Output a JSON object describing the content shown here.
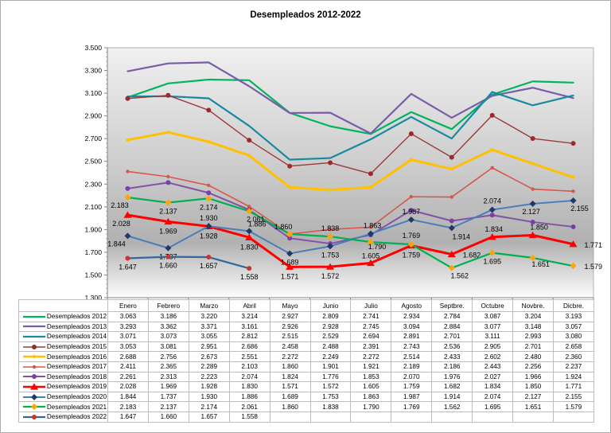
{
  "title": "Desempleados 2012-2022",
  "chart_data": {
    "type": "line",
    "title": "Desempleados 2012-2022",
    "xlabel": "",
    "ylabel": "",
    "ylim": [
      1.3,
      3.5
    ],
    "y_tick_labels": [
      "3.500",
      "3.300",
      "3.100",
      "2.900",
      "2.700",
      "2.500",
      "2.300",
      "2.100",
      "1.900",
      "1.700",
      "1.500",
      "1.300"
    ],
    "grid": false,
    "legend_position": "data-table-left",
    "plot_background": {
      "top": "#f0f0f0",
      "middle": "#cccccc",
      "lower": "#b1b1b1",
      "bottom": "#fdfdfd"
    },
    "categories": [
      "Enero",
      "Febrero",
      "Marzo",
      "Abril",
      "Mayo",
      "Junio",
      "Julio",
      "Agosto",
      "Septbre.",
      "Octubre",
      "Novbre.",
      "Dicbre."
    ],
    "series": [
      {
        "name": "Desempleados 2012",
        "color": "#00B45F",
        "width": 2.2,
        "marker": "none",
        "marker_color": "#00B45F",
        "data_labels": false,
        "values": [
          3.063,
          3.186,
          3.22,
          3.214,
          2.927,
          2.809,
          2.741,
          2.934,
          2.784,
          3.087,
          3.204,
          3.193
        ]
      },
      {
        "name": "Desempleados 2013",
        "color": "#7A5DA8",
        "width": 2.2,
        "marker": "none",
        "marker_color": "#7A5DA8",
        "data_labels": false,
        "values": [
          3.293,
          3.362,
          3.371,
          3.161,
          2.926,
          2.928,
          2.745,
          3.094,
          2.884,
          3.077,
          3.148,
          3.057
        ]
      },
      {
        "name": "Desempleados 2014",
        "color": "#1789A0",
        "width": 2.2,
        "marker": "none",
        "marker_color": "#1789A0",
        "data_labels": false,
        "values": [
          3.071,
          3.073,
          3.055,
          2.812,
          2.515,
          2.529,
          2.694,
          2.891,
          2.701,
          3.111,
          2.993,
          3.08
        ]
      },
      {
        "name": "Desempleados 2015",
        "color": "#9C3838",
        "width": 1.4,
        "marker": "circle",
        "marker_color": "#9C2A2A",
        "data_labels": false,
        "values": [
          3.053,
          3.081,
          2.951,
          2.686,
          2.458,
          2.488,
          2.391,
          2.743,
          2.536,
          2.905,
          2.701,
          2.658
        ]
      },
      {
        "name": "Desempleados 2016",
        "color": "#FFC003",
        "width": 3.0,
        "marker": "diamond-small",
        "marker_color": "#FFC003",
        "data_labels": false,
        "values": [
          2.688,
          2.756,
          2.673,
          2.551,
          2.272,
          2.249,
          2.272,
          2.514,
          2.433,
          2.602,
          2.48,
          2.36
        ]
      },
      {
        "name": "Desempleados 2017",
        "color": "#D4584E",
        "width": 1.6,
        "marker": "circle-small",
        "marker_color": "#D4584E",
        "data_labels": false,
        "values": [
          2.411,
          2.365,
          2.289,
          2.103,
          1.86,
          1.901,
          1.921,
          2.189,
          2.186,
          2.443,
          2.256,
          2.237
        ]
      },
      {
        "name": "Desempleados 2018",
        "color": "#8352A8",
        "width": 2.0,
        "marker": "circle",
        "marker_color": "#7B3FA8",
        "data_labels": false,
        "values": [
          2.261,
          2.313,
          2.223,
          2.074,
          1.824,
          1.776,
          1.853,
          2.07,
          1.976,
          2.027,
          1.966,
          1.924
        ]
      },
      {
        "name": "Desempleados 2019",
        "color": "#FE0000",
        "width": 3.0,
        "marker": "triangle",
        "marker_color": "#FE0000",
        "data_labels": true,
        "values": [
          2.028,
          1.969,
          1.928,
          1.83,
          1.571,
          1.572,
          1.605,
          1.759,
          1.682,
          1.834,
          1.85,
          1.771
        ]
      },
      {
        "name": "Desempleados 2020",
        "color": "#4A7EBB",
        "width": 2.0,
        "marker": "diamond",
        "marker_color": "#1F3864",
        "data_labels": true,
        "values": [
          1.844,
          1.737,
          1.93,
          1.886,
          1.689,
          1.753,
          1.863,
          1.987,
          1.914,
          2.074,
          2.127,
          2.155
        ]
      },
      {
        "name": "Desempleados 2021",
        "color": "#00AF50",
        "width": 2.2,
        "marker": "diamond",
        "marker_color": "#FFA400",
        "data_labels": true,
        "values": [
          2.183,
          2.137,
          2.174,
          2.061,
          1.86,
          1.838,
          1.79,
          1.769,
          1.562,
          1.695,
          1.651,
          1.579
        ]
      },
      {
        "name": "Desempleados 2022",
        "color": "#31679B",
        "width": 2.2,
        "marker": "circle",
        "marker_color": "#CC3333",
        "data_labels": true,
        "values": [
          1.647,
          1.66,
          1.657,
          1.558,
          null,
          null,
          null,
          null,
          null,
          null,
          null,
          null
        ]
      }
    ]
  }
}
